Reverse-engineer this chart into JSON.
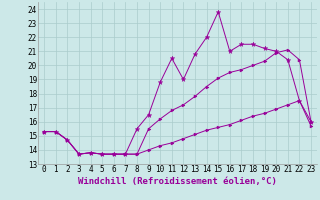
{
  "xlabel": "Windchill (Refroidissement éolien,°C)",
  "background_color": "#cce8e8",
  "line_color": "#990099",
  "grid_color": "#aacccc",
  "xlim_min": -0.5,
  "xlim_max": 23.5,
  "ylim_min": 13,
  "ylim_max": 24.5,
  "yticks": [
    13,
    14,
    15,
    16,
    17,
    18,
    19,
    20,
    21,
    22,
    23,
    24
  ],
  "xticks": [
    0,
    1,
    2,
    3,
    4,
    5,
    6,
    7,
    8,
    9,
    10,
    11,
    12,
    13,
    14,
    15,
    16,
    17,
    18,
    19,
    20,
    21,
    22,
    23
  ],
  "series_bottom_x": [
    0,
    1,
    2,
    3,
    4,
    5,
    6,
    7,
    8,
    9,
    10,
    11,
    12,
    13,
    14,
    15,
    16,
    17,
    18,
    19,
    20,
    21,
    22,
    23
  ],
  "series_bottom_y": [
    15.3,
    15.3,
    14.7,
    13.7,
    13.8,
    13.7,
    13.7,
    13.7,
    13.7,
    14.0,
    14.3,
    14.5,
    14.8,
    15.1,
    15.4,
    15.6,
    15.8,
    16.1,
    16.4,
    16.6,
    16.9,
    17.2,
    17.5,
    15.7
  ],
  "series_mid_x": [
    0,
    1,
    2,
    3,
    4,
    5,
    6,
    7,
    8,
    9,
    10,
    11,
    12,
    13,
    14,
    15,
    16,
    17,
    18,
    19,
    20,
    21,
    22,
    23
  ],
  "series_mid_y": [
    15.3,
    15.3,
    14.7,
    13.7,
    13.8,
    13.7,
    13.7,
    13.7,
    13.7,
    15.5,
    16.2,
    16.8,
    17.2,
    17.8,
    18.5,
    19.1,
    19.5,
    19.7,
    20.0,
    20.3,
    20.9,
    21.1,
    20.4,
    16.0
  ],
  "series_top_x": [
    0,
    1,
    2,
    3,
    4,
    5,
    6,
    7,
    8,
    9,
    10,
    11,
    12,
    13,
    14,
    15,
    16,
    17,
    18,
    19,
    20,
    21,
    22,
    23
  ],
  "series_top_y": [
    15.3,
    15.3,
    14.7,
    13.7,
    13.8,
    13.7,
    13.7,
    13.7,
    15.5,
    16.5,
    18.8,
    20.5,
    19.0,
    20.8,
    22.0,
    23.8,
    21.0,
    21.5,
    21.5,
    21.2,
    21.0,
    20.4,
    17.5,
    16.0
  ],
  "xlabel_fontsize": 6.5,
  "tick_fontsize": 5.5
}
